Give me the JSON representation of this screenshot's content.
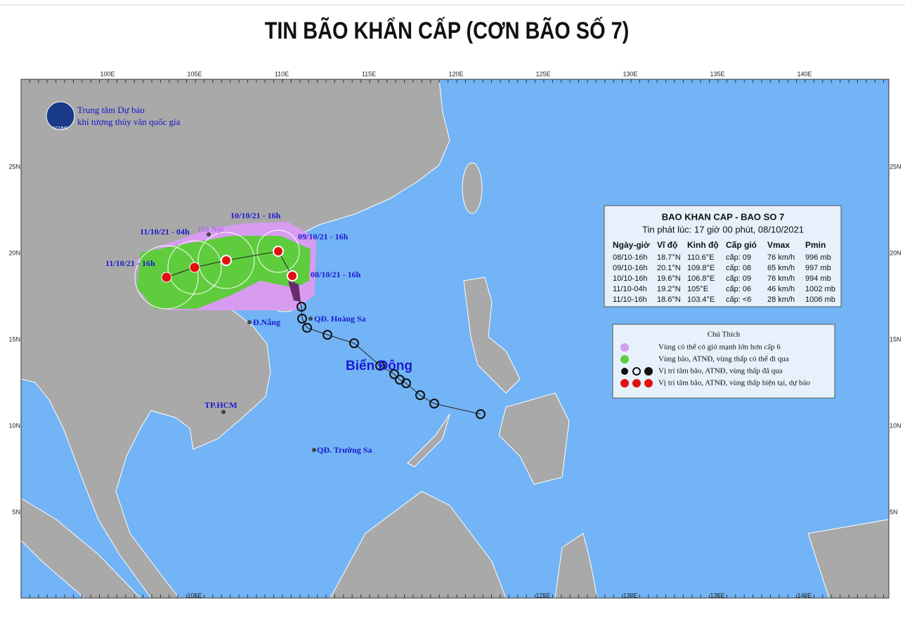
{
  "header": {
    "title": "TIN BÃO KHẨN CẤP (CƠN BÃO SỐ 7)"
  },
  "map": {
    "top_ticks": [
      "100E",
      "105E",
      "110E",
      "115E",
      "120E",
      "125E",
      "130E",
      "135E",
      "140E"
    ],
    "bottom_ticks": [
      "105E",
      "125E",
      "130E",
      "135E",
      "140E"
    ],
    "left_ticks": [
      "25N",
      "20N",
      "15N",
      "10N",
      "5N"
    ],
    "right_ticks": [
      "25N",
      "20N",
      "15N",
      "10N",
      "5N"
    ],
    "logo": {
      "line1": "Trung tâm Dự báo",
      "line2": "khí tượng thủy văn quốc gia",
      "badge": "NCHMF"
    },
    "labels": [
      "10/10/21 - 16h",
      "11/10/21 - 04h",
      "Hà Nội",
      "09/10/21 - 16h",
      "11/10/21 - 16h",
      "08/10/21 - 16h",
      "Đ.Nẵng",
      "QĐ. Hoàng Sa",
      "Biển Đông",
      "TP.HCM",
      "QĐ. Trường Sa"
    ]
  },
  "info_box": {
    "title": "BAO KHAN CAP - BAO SO 7",
    "issued": "Tin phát lúc: 17 giờ 00 phút, 08/10/2021",
    "columns": [
      "Ngày-giờ",
      "Vĩ độ",
      "Kinh độ",
      "Cấp gió",
      "Vmax",
      "Pmin"
    ],
    "rows": [
      [
        "08/10-16h",
        "18.7°N",
        "110.6°E",
        "cấp: 09",
        "76 km/h",
        "996 mb"
      ],
      [
        "09/10-16h",
        "20.1°N",
        "109.8°E",
        "cấp: 08",
        "65 km/h",
        "997 mb"
      ],
      [
        "10/10-16h",
        "19.6°N",
        "106.8°E",
        "cấp: 09",
        "76 km/h",
        "994 mb"
      ],
      [
        "11/10-04h",
        "19.2°N",
        "105°E",
        "cấp: 06",
        "46 km/h",
        "1002 mb"
      ],
      [
        "11/10-16h",
        "18.6°N",
        "103.4°E",
        "cấp: <6",
        "28 km/h",
        "1006 mb"
      ]
    ]
  },
  "legend": {
    "title": "Chú Thích",
    "items": [
      "Vùng có thể có gió mạnh lớn hơn cấp 6",
      "Vùng bão, ATNĐ, vùng thấp có thể đi qua",
      "Vị trí tâm bão, ATNĐ, vùng thấp đã qua",
      "Vị trí tâm bão, ATNĐ, vùng thấp hiện tại, dự báo"
    ]
  }
}
